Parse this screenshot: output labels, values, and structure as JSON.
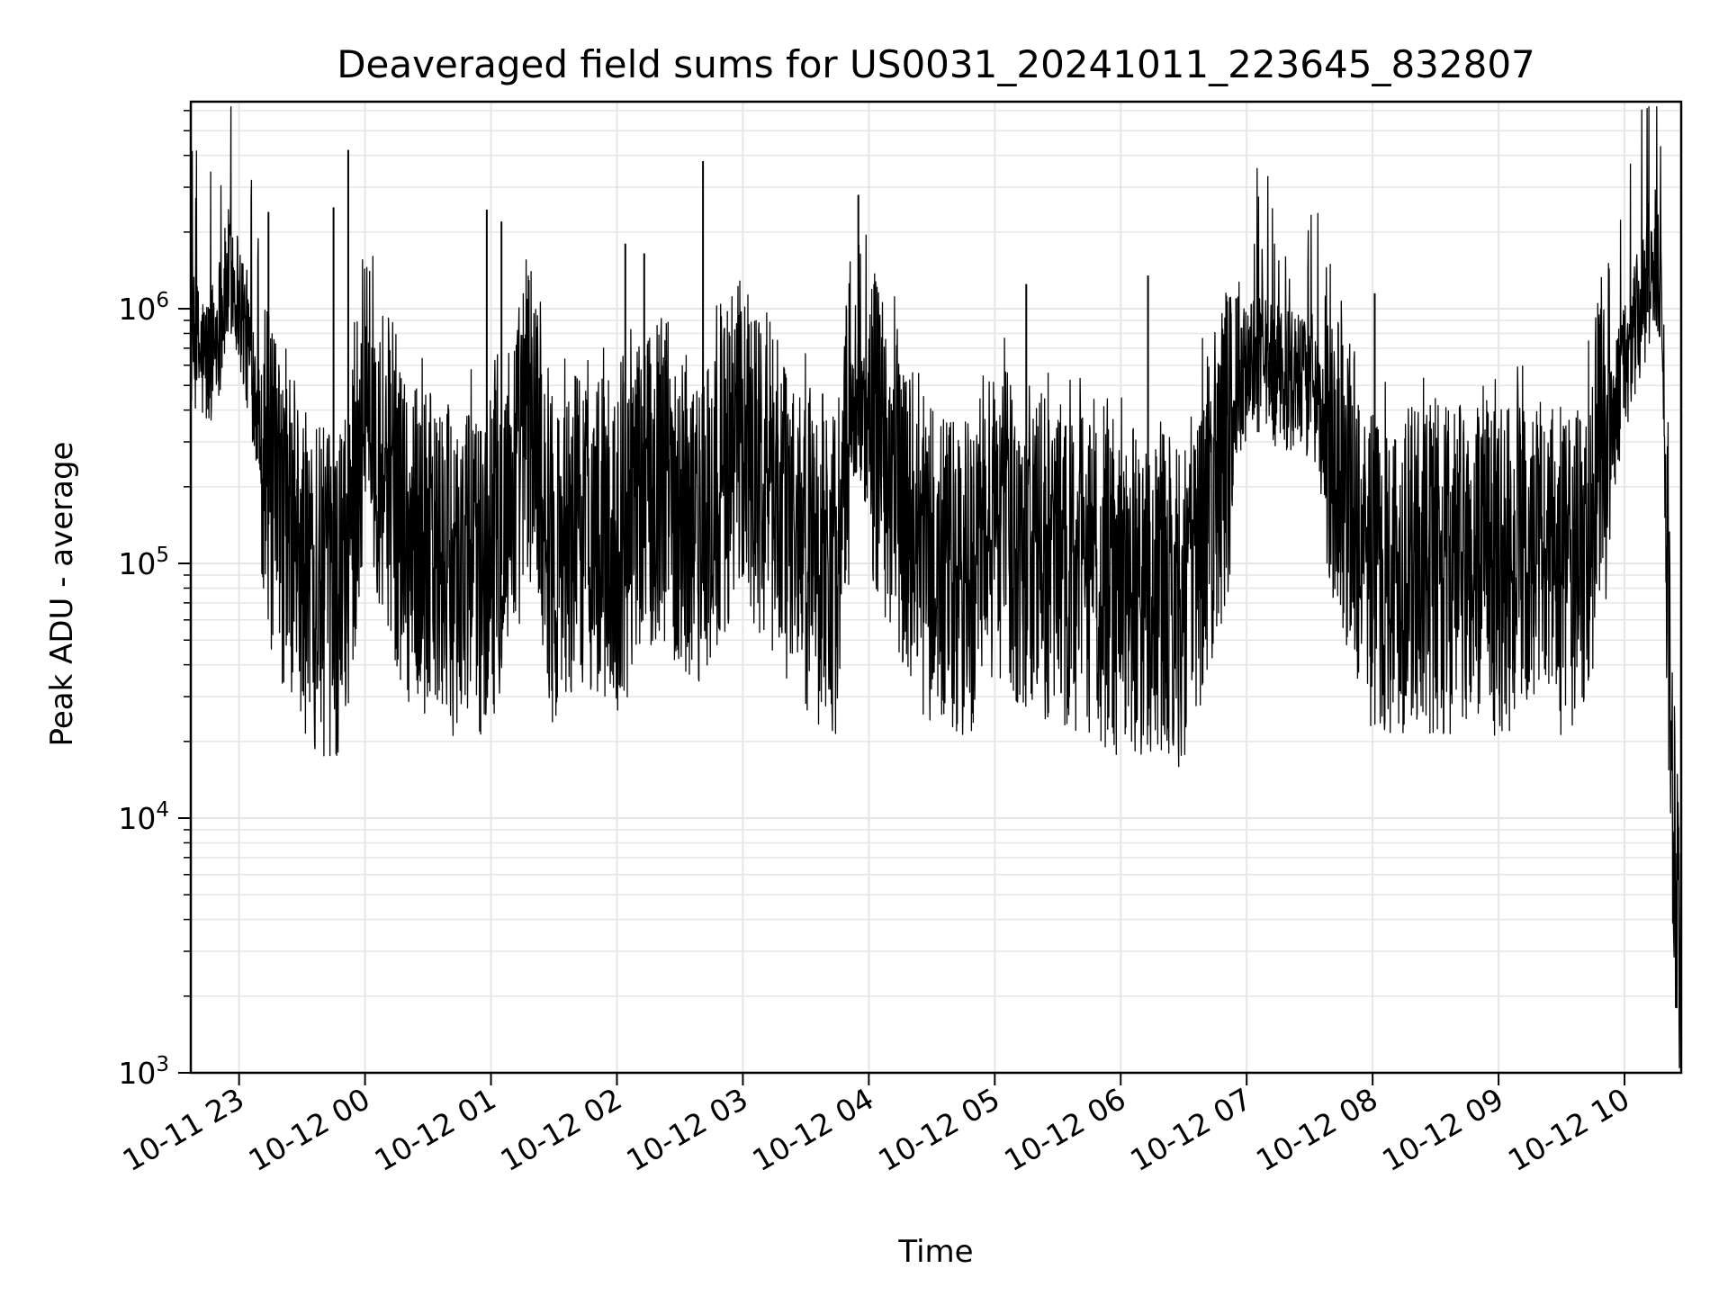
{
  "chart_data": {
    "type": "line",
    "title": "Deaveraged field sums for US0031_20241011_223645_832807",
    "xlabel": "Time",
    "ylabel": "Peak ADU - average",
    "yscale": "log",
    "ylim": [
      1000,
      6500000
    ],
    "xlim": [
      "2024-10-11 22:37",
      "2024-10-12 10:27"
    ],
    "grid": true,
    "line_color": "#000000",
    "grid_color": "#e6e6e6",
    "x_tick_labels": [
      "10-11 23",
      "10-12 00",
      "10-12 01",
      "10-12 02",
      "10-12 03",
      "10-12 04",
      "10-12 05",
      "10-12 06",
      "10-12 07",
      "10-12 08",
      "10-12 09",
      "10-12 10"
    ],
    "x_ticks": [
      "2024-10-11 23:00",
      "2024-10-12 00:00",
      "2024-10-12 01:00",
      "2024-10-12 02:00",
      "2024-10-12 03:00",
      "2024-10-12 04:00",
      "2024-10-12 05:00",
      "2024-10-12 06:00",
      "2024-10-12 07:00",
      "2024-10-12 08:00",
      "2024-10-12 09:00",
      "2024-10-12 10:00"
    ],
    "y_tick_labels": [
      {
        "value": 1000,
        "base": "10",
        "exp": "3"
      },
      {
        "value": 10000,
        "base": "10",
        "exp": "4"
      },
      {
        "value": 100000,
        "base": "10",
        "exp": "5"
      },
      {
        "value": 1000000,
        "base": "10",
        "exp": "6"
      }
    ],
    "series": [
      {
        "x": [
          "2024-10-11 22:37",
          "2024-10-11 22:45",
          "2024-10-11 22:52",
          "2024-10-11 22:56",
          "2024-10-11 23:00",
          "2024-10-11 23:08",
          "2024-10-11 23:12",
          "2024-10-11 23:15",
          "2024-10-11 23:30",
          "2024-10-11 23:45",
          "2024-10-11 23:50",
          "2024-10-12 00:00",
          "2024-10-12 00:20",
          "2024-10-12 00:40",
          "2024-10-12 00:59",
          "2024-10-12 01:20",
          "2024-10-12 01:30",
          "2024-10-12 01:45",
          "2024-10-12 02:00",
          "2024-10-12 02:20",
          "2024-10-12 02:40",
          "2024-10-12 03:00",
          "2024-10-12 03:30",
          "2024-10-12 03:45",
          "2024-10-12 03:53",
          "2024-10-12 04:00",
          "2024-10-12 04:10",
          "2024-10-12 04:30",
          "2024-10-12 04:45",
          "2024-10-12 05:00",
          "2024-10-12 05:30",
          "2024-10-12 06:00",
          "2024-10-12 06:30",
          "2024-10-12 06:45",
          "2024-10-12 07:00",
          "2024-10-12 07:30",
          "2024-10-12 08:00",
          "2024-10-12 08:30",
          "2024-10-12 09:00",
          "2024-10-12 09:40",
          "2024-10-12 09:50",
          "2024-10-12 10:00",
          "2024-10-12 10:10",
          "2024-10-12 10:15",
          "2024-10-12 10:18",
          "2024-10-12 10:20",
          "2024-10-12 10:23",
          "2024-10-12 10:25",
          "2024-10-12 10:27"
        ],
        "y": [
          600000,
          500000,
          800000,
          1200000,
          900000,
          400000,
          200000,
          120000,
          60000,
          45000,
          55000,
          300000,
          80000,
          60000,
          60000,
          250000,
          60000,
          90000,
          70000,
          150000,
          80000,
          200000,
          70000,
          60000,
          350000,
          250000,
          150000,
          60000,
          50000,
          90000,
          60000,
          50000,
          45000,
          120000,
          500000,
          400000,
          60000,
          60000,
          60000,
          60000,
          180000,
          500000,
          900000,
          1300000,
          1000000,
          100000,
          8000,
          4000,
          1500
        ]
      }
    ],
    "spikes": [
      {
        "x": "2024-10-11 23:14",
        "y": 2400000
      },
      {
        "x": "2024-10-11 23:45",
        "y": 2500000
      },
      {
        "x": "2024-10-11 23:52",
        "y": 4200000
      },
      {
        "x": "2024-10-12 00:58",
        "y": 2450000
      },
      {
        "x": "2024-10-12 01:05",
        "y": 2200000
      },
      {
        "x": "2024-10-12 02:04",
        "y": 1800000
      },
      {
        "x": "2024-10-12 02:13",
        "y": 1650000
      },
      {
        "x": "2024-10-12 02:41",
        "y": 3800000
      },
      {
        "x": "2024-10-12 03:55",
        "y": 2800000
      },
      {
        "x": "2024-10-12 05:15",
        "y": 1250000
      },
      {
        "x": "2024-10-12 06:13",
        "y": 1350000
      },
      {
        "x": "2024-10-12 06:55",
        "y": 1100000
      },
      {
        "x": "2024-10-12 08:01",
        "y": 1150000
      },
      {
        "x": "2024-10-12 10:11",
        "y": 2600000
      }
    ]
  }
}
